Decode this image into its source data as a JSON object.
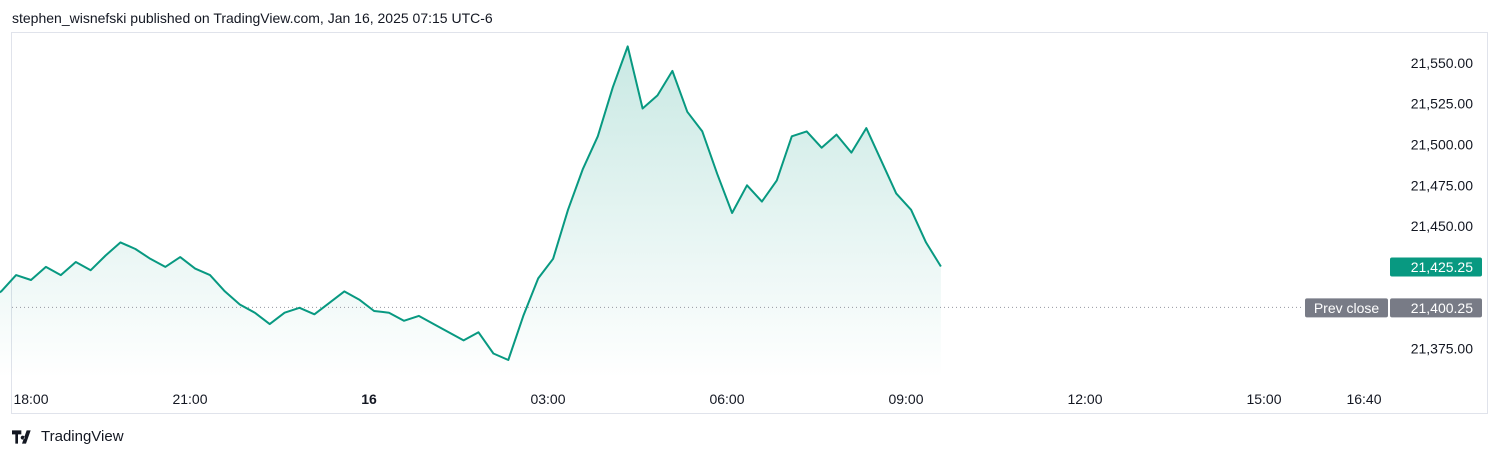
{
  "header": {
    "attribution": "stephen_wisnefski published on TradingView.com, Jan 16, 2025 07:15 UTC-6"
  },
  "footer": {
    "brand": "TradingView",
    "logo_icon": "tradingview-logo-icon"
  },
  "colors": {
    "line": "#089981",
    "fill_top": "rgba(8,153,129,0.22)",
    "fill_bottom": "rgba(8,153,129,0.0)",
    "last_label_bg": "#089981",
    "prev_close_bg": "#787b86",
    "dotted": "#9598a1"
  },
  "chart_data": {
    "type": "area",
    "x_ticks": [
      "18:00",
      "21:00",
      "16",
      "03:00",
      "06:00",
      "09:00",
      "12:00",
      "15:00",
      "16:40"
    ],
    "x_ticks_bold": [
      "16"
    ],
    "y_ticks": [
      "21,550.00",
      "21,525.00",
      "21,500.00",
      "21,475.00",
      "21,450.00",
      "21,375.00"
    ],
    "ylim": [
      21357,
      21567
    ],
    "last_price": 21425.25,
    "last_price_label": "21,425.25",
    "prev_close": 21400.25,
    "prev_close_label": "21,400.25",
    "prev_close_text": "Prev close",
    "series": [
      {
        "points": [
          [
            "17:00",
            21395
          ],
          [
            "17:15",
            21405
          ],
          [
            "17:30",
            21410
          ],
          [
            "17:45",
            21420
          ],
          [
            "18:00",
            21417
          ],
          [
            "18:15",
            21425
          ],
          [
            "18:30",
            21420
          ],
          [
            "18:45",
            21428
          ],
          [
            "19:00",
            21423
          ],
          [
            "19:15",
            21432
          ],
          [
            "19:30",
            21440
          ],
          [
            "19:45",
            21436
          ],
          [
            "20:00",
            21430
          ],
          [
            "20:15",
            21425
          ],
          [
            "20:30",
            21431
          ],
          [
            "20:45",
            21424
          ],
          [
            "21:00",
            21420
          ],
          [
            "21:15",
            21410
          ],
          [
            "21:30",
            21402
          ],
          [
            "21:45",
            21397
          ],
          [
            "22:00",
            21390
          ],
          [
            "22:15",
            21397
          ],
          [
            "22:30",
            21400
          ],
          [
            "22:45",
            21396
          ],
          [
            "23:00",
            21403
          ],
          [
            "23:15",
            21410
          ],
          [
            "23:30",
            21405
          ],
          [
            "23:45",
            21398
          ],
          [
            "00:00",
            21397
          ],
          [
            "00:15",
            21392
          ],
          [
            "00:30",
            21395
          ],
          [
            "00:45",
            21390
          ],
          [
            "01:00",
            21385
          ],
          [
            "01:15",
            21380
          ],
          [
            "01:30",
            21385
          ],
          [
            "01:45",
            21372
          ],
          [
            "02:00",
            21368
          ],
          [
            "02:15",
            21395
          ],
          [
            "02:30",
            21418
          ],
          [
            "02:45",
            21430
          ],
          [
            "03:00",
            21460
          ],
          [
            "03:15",
            21485
          ],
          [
            "03:30",
            21505
          ],
          [
            "03:45",
            21535
          ],
          [
            "04:00",
            21560
          ],
          [
            "04:15",
            21522
          ],
          [
            "04:30",
            21530
          ],
          [
            "04:45",
            21545
          ],
          [
            "05:00",
            21520
          ],
          [
            "05:15",
            21508
          ],
          [
            "05:30",
            21482
          ],
          [
            "05:45",
            21458
          ],
          [
            "06:00",
            21475
          ],
          [
            "06:15",
            21465
          ],
          [
            "06:30",
            21478
          ],
          [
            "06:45",
            21505
          ],
          [
            "07:00",
            21508
          ],
          [
            "07:15",
            21498
          ],
          [
            "07:30",
            21506
          ],
          [
            "07:45",
            21495
          ],
          [
            "08:00",
            21510
          ],
          [
            "08:15",
            21490
          ],
          [
            "08:30",
            21470
          ],
          [
            "08:45",
            21460
          ],
          [
            "09:00",
            21440
          ],
          [
            "09:15",
            21425.25
          ]
        ]
      }
    ]
  }
}
